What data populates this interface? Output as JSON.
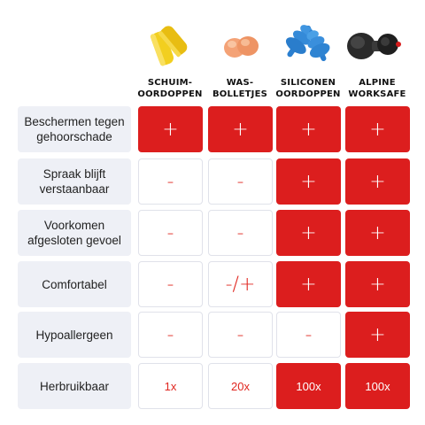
{
  "columns": [
    {
      "line1": "SCHUIM-",
      "line2": "OORDOPPEN"
    },
    {
      "line1": "WAS-",
      "line2": "BOLLETJES"
    },
    {
      "line1": "SILICONEN",
      "line2": "OORDOPPEN"
    },
    {
      "line1": "ALPINE",
      "line2": "WORKSAFE"
    }
  ],
  "rows": [
    {
      "label": "Beschermen tegen gehoorschade",
      "values": [
        "+",
        "+",
        "+",
        "+"
      ]
    },
    {
      "label": "Spraak blijft verstaanbaar",
      "values": [
        "-",
        "-",
        "+",
        "+"
      ]
    },
    {
      "label": "Voorkomen afgesloten gevoel",
      "values": [
        "-",
        "-",
        "+",
        "+"
      ]
    },
    {
      "label": "Comfortabel",
      "values": [
        "-",
        "-/+",
        "+",
        "+"
      ]
    },
    {
      "label": "Hypoallergeen",
      "values": [
        "-",
        "-",
        "-",
        "+"
      ]
    },
    {
      "label": "Herbruikbaar",
      "values": [
        "1x",
        "20x",
        "100x",
        "100x"
      ]
    }
  ],
  "colors": {
    "accent_red": "#dc1e1e",
    "label_bg": "#eef0f6"
  }
}
